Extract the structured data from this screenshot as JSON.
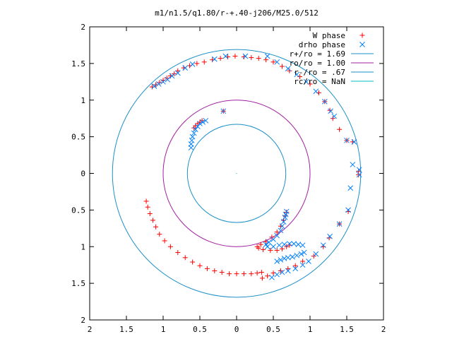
{
  "chart_data": {
    "type": "scatter",
    "title": "m1/n1.5/q1.80/r-+.40-j206/M25.0/512",
    "xlabel": "",
    "ylabel": "",
    "xlim": [
      -2,
      2
    ],
    "ylim": [
      -2,
      2
    ],
    "x_tick_labels": [
      "2",
      "1.5",
      "1",
      "0.5",
      "0",
      "0.5",
      "1",
      "1.5",
      "2"
    ],
    "y_tick_labels": [
      "2",
      "1.5",
      "1",
      "0.5",
      "0",
      "0.5",
      "1",
      "1.5",
      "2"
    ],
    "x_tick_values": [
      -2,
      -1.5,
      -1,
      -0.5,
      0,
      0.5,
      1,
      1.5,
      2
    ],
    "y_tick_values": [
      2,
      1.5,
      1,
      0.5,
      0,
      -0.5,
      -1,
      -1.5,
      -2
    ],
    "grid": false,
    "legend_position": "top-right",
    "colors": {
      "w_phase": "#ff0000",
      "drho_phase": "#0080ff",
      "r_plus": "#1e90c8",
      "ro": "#a020a0",
      "r_minus": "#1e90c8",
      "rc": "#00c0c0"
    },
    "series": [
      {
        "name": "W phase",
        "kind": "points",
        "marker": "plus",
        "points": [
          [
            -1.15,
            1.18
          ],
          [
            -1.1,
            1.21
          ],
          [
            -1.05,
            1.24
          ],
          [
            -1.0,
            1.27
          ],
          [
            -0.95,
            1.3
          ],
          [
            -0.9,
            1.33
          ],
          [
            -0.85,
            1.36
          ],
          [
            -0.8,
            1.4
          ],
          [
            -0.72,
            1.44
          ],
          [
            -0.64,
            1.47
          ],
          [
            -0.54,
            1.5
          ],
          [
            -0.44,
            1.52
          ],
          [
            -0.33,
            1.55
          ],
          [
            -0.22,
            1.57
          ],
          [
            -0.12,
            1.59
          ],
          [
            -0.02,
            1.6
          ],
          [
            0.1,
            1.59
          ],
          [
            0.2,
            1.58
          ],
          [
            0.3,
            1.57
          ],
          [
            0.4,
            1.55
          ],
          [
            0.5,
            1.52
          ],
          [
            0.62,
            1.46
          ],
          [
            0.72,
            1.4
          ],
          [
            0.86,
            1.32
          ],
          [
            1.0,
            1.22
          ],
          [
            1.12,
            1.1
          ],
          [
            1.2,
            0.98
          ],
          [
            1.27,
            0.86
          ],
          [
            1.31,
            0.75
          ],
          [
            1.4,
            0.6
          ],
          [
            1.5,
            0.45
          ],
          [
            1.58,
            0.43
          ],
          [
            1.66,
            0.03
          ],
          [
            1.66,
            -0.02
          ],
          [
            1.52,
            -0.52
          ],
          [
            1.4,
            -0.69
          ],
          [
            1.26,
            -0.88
          ],
          [
            1.18,
            -1.0
          ],
          [
            1.05,
            -1.13
          ],
          [
            0.9,
            -1.2
          ],
          [
            0.8,
            -1.26
          ],
          [
            0.7,
            -1.3
          ],
          [
            0.6,
            -1.33
          ],
          [
            0.5,
            -1.36
          ],
          [
            0.42,
            -1.4
          ],
          [
            0.35,
            -1.43
          ],
          [
            0.68,
            -0.53
          ],
          [
            0.66,
            -0.58
          ],
          [
            0.64,
            -0.64
          ],
          [
            0.6,
            -0.72
          ],
          [
            0.55,
            -0.8
          ],
          [
            0.48,
            -0.87
          ],
          [
            0.4,
            -0.93
          ],
          [
            0.33,
            -0.97
          ],
          [
            0.28,
            -1.0
          ],
          [
            0.3,
            -1.02
          ],
          [
            0.36,
            -1.04
          ],
          [
            0.46,
            -1.05
          ],
          [
            0.55,
            -1.05
          ],
          [
            0.62,
            -1.03
          ],
          [
            0.68,
            -1.0
          ],
          [
            0.72,
            -0.98
          ],
          [
            0.34,
            -1.35
          ],
          [
            0.28,
            -1.36
          ],
          [
            0.2,
            -1.37
          ],
          [
            0.1,
            -1.37
          ],
          [
            0.0,
            -1.37
          ],
          [
            -0.1,
            -1.37
          ],
          [
            -0.2,
            -1.35
          ],
          [
            -0.3,
            -1.33
          ],
          [
            -0.4,
            -1.3
          ],
          [
            -0.5,
            -1.26
          ],
          [
            -0.6,
            -1.21
          ],
          [
            -0.7,
            -1.15
          ],
          [
            -0.8,
            -1.08
          ],
          [
            -0.9,
            -1.0
          ],
          [
            -0.98,
            -0.92
          ],
          [
            -1.05,
            -0.83
          ],
          [
            -1.1,
            -0.73
          ],
          [
            -1.14,
            -0.64
          ],
          [
            -1.18,
            -0.55
          ],
          [
            -1.21,
            -0.46
          ],
          [
            -1.23,
            -0.38
          ],
          [
            -0.58,
            0.62
          ],
          [
            -0.56,
            0.65
          ],
          [
            -0.53,
            0.68
          ],
          [
            -0.5,
            0.7
          ],
          [
            -0.47,
            0.72
          ],
          [
            -0.18,
            0.85
          ]
        ]
      },
      {
        "name": "drho phase",
        "kind": "points",
        "marker": "cross",
        "points": [
          [
            -1.12,
            1.19
          ],
          [
            -1.06,
            1.22
          ],
          [
            -1.0,
            1.25
          ],
          [
            -0.94,
            1.28
          ],
          [
            -0.88,
            1.33
          ],
          [
            -0.8,
            1.37
          ],
          [
            -0.7,
            1.44
          ],
          [
            -0.6,
            1.49
          ],
          [
            -0.3,
            1.56
          ],
          [
            -0.15,
            1.6
          ],
          [
            0.12,
            1.6
          ],
          [
            0.42,
            1.6
          ],
          [
            0.55,
            1.52
          ],
          [
            0.7,
            1.43
          ],
          [
            0.82,
            1.35
          ],
          [
            0.95,
            1.25
          ],
          [
            1.08,
            1.12
          ],
          [
            1.2,
            0.98
          ],
          [
            1.28,
            0.85
          ],
          [
            1.33,
            0.78
          ],
          [
            1.5,
            0.45
          ],
          [
            1.6,
            0.43
          ],
          [
            1.58,
            0.12
          ],
          [
            1.67,
            0.05
          ],
          [
            1.67,
            -0.02
          ],
          [
            1.55,
            -0.2
          ],
          [
            1.52,
            -0.5
          ],
          [
            1.4,
            -0.69
          ],
          [
            1.27,
            -0.86
          ],
          [
            1.18,
            -0.98
          ],
          [
            1.08,
            -1.1
          ],
          [
            0.98,
            -1.2
          ],
          [
            0.9,
            -1.25
          ],
          [
            0.8,
            -1.3
          ],
          [
            0.7,
            -1.33
          ],
          [
            0.62,
            -1.35
          ],
          [
            0.55,
            -1.38
          ],
          [
            0.48,
            -1.42
          ],
          [
            -0.62,
            0.35
          ],
          [
            -0.62,
            0.4
          ],
          [
            -0.61,
            0.45
          ],
          [
            -0.6,
            0.5
          ],
          [
            -0.58,
            0.55
          ],
          [
            -0.56,
            0.6
          ],
          [
            -0.53,
            0.64
          ],
          [
            -0.5,
            0.68
          ],
          [
            -0.46,
            0.7
          ],
          [
            -0.42,
            0.72
          ],
          [
            -0.18,
            0.85
          ],
          [
            0.68,
            -0.52
          ],
          [
            0.67,
            -0.56
          ],
          [
            0.66,
            -0.6
          ],
          [
            0.64,
            -0.66
          ],
          [
            0.62,
            -0.72
          ],
          [
            0.6,
            -0.78
          ],
          [
            0.55,
            -0.85
          ],
          [
            0.5,
            -0.9
          ],
          [
            0.44,
            -0.94
          ],
          [
            0.4,
            -0.97
          ],
          [
            0.42,
            -1.0
          ],
          [
            0.5,
            -1.0
          ],
          [
            0.58,
            -0.98
          ],
          [
            0.65,
            -0.97
          ],
          [
            0.72,
            -0.96
          ],
          [
            0.78,
            -0.96
          ],
          [
            0.84,
            -0.97
          ],
          [
            0.9,
            -0.98
          ],
          [
            0.55,
            -1.2
          ],
          [
            0.6,
            -1.18
          ],
          [
            0.65,
            -1.16
          ],
          [
            0.7,
            -1.15
          ],
          [
            0.76,
            -1.14
          ],
          [
            0.82,
            -1.12
          ],
          [
            0.88,
            -1.1
          ],
          [
            0.92,
            -1.08
          ]
        ]
      },
      {
        "name": "r+/ro = 1.69",
        "kind": "circle",
        "radius": 1.69
      },
      {
        "name": "ro/ro = 1.00",
        "kind": "circle",
        "radius": 1.0
      },
      {
        "name": "r-/ro = .67",
        "kind": "circle",
        "radius": 0.67
      },
      {
        "name": "rc/ro = NaN",
        "kind": "circle",
        "radius": null
      }
    ]
  }
}
